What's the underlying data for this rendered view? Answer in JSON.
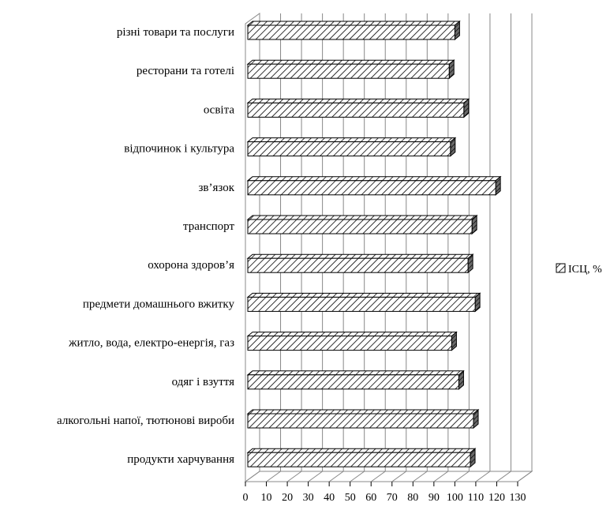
{
  "chart_data": {
    "type": "bar",
    "orientation": "horizontal",
    "style": "3d",
    "grid": true,
    "legend_position": "right",
    "categories": [
      "різні товари та послуги",
      "ресторани та готелі",
      "освіта",
      "відпочинок і культура",
      "зв’язок",
      "транспорт",
      "охорона здоров’я",
      "предмети домашнього вжитку",
      "житло, вода, електро-енергія, газ",
      "одяг і взуття",
      "алкогольні напої, тютюнові вироби",
      "продукти харчування"
    ],
    "series": [
      {
        "name": "ІСЦ, %",
        "values": [
          100,
          97.3,
          104.3,
          97.9,
          119.5,
          108.2,
          106.3,
          109.7,
          98.5,
          101.9,
          108.9,
          107.4
        ]
      }
    ],
    "xlim": [
      0,
      130
    ],
    "xticks": [
      0,
      10,
      20,
      30,
      40,
      50,
      60,
      70,
      80,
      90,
      100,
      110,
      120,
      130
    ],
    "title": "",
    "xlabel": "",
    "ylabel": "",
    "colors": {
      "stroke": "#000000",
      "grid": "#888888",
      "background": "#ffffff"
    }
  }
}
